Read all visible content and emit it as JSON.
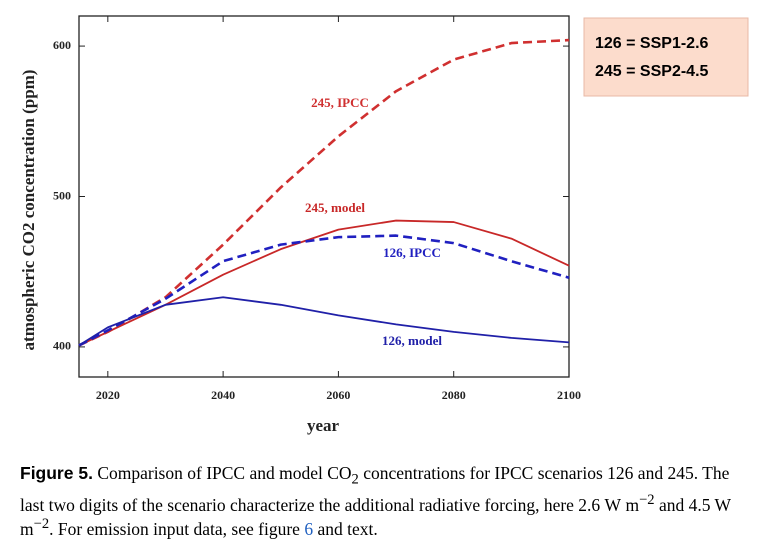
{
  "chart_data": {
    "type": "line",
    "x_label": "year",
    "y_label": "atmospheric CO2 concentration (ppm)",
    "x": [
      2015,
      2020,
      2030,
      2040,
      2050,
      2060,
      2070,
      2080,
      2090,
      2100
    ],
    "series": [
      {
        "name": "245, IPCC",
        "color": "#d03030",
        "dashed": true,
        "values": [
          401,
          410,
          433,
          468,
          506,
          540,
          570,
          591,
          602,
          604
        ]
      },
      {
        "name": "245, model",
        "color": "#c82828",
        "dashed": false,
        "values": [
          401,
          410,
          428,
          448,
          465,
          478,
          484,
          483,
          472,
          454
        ]
      },
      {
        "name": "126, IPCC",
        "color": "#2020c0",
        "dashed": true,
        "values": [
          401,
          411,
          432,
          457,
          468,
          473,
          474,
          469,
          457,
          446
        ]
      },
      {
        "name": "126, model",
        "color": "#2020a8",
        "dashed": false,
        "values": [
          401,
          413,
          428,
          433,
          428,
          421,
          415,
          410,
          406,
          403
        ]
      }
    ],
    "xlim": [
      2015,
      2100
    ],
    "xticks": [
      2020,
      2040,
      2060,
      2080,
      2100
    ],
    "ylim": [
      380,
      620
    ],
    "yticks": [
      400,
      500,
      600
    ],
    "grid": false
  },
  "legend_box": {
    "lines": [
      "126 = SSP1-2.6",
      "245 = SSP2-4.5"
    ]
  },
  "caption": {
    "label": "Figure 5.",
    "parts": [
      " Comparison of IPCC and model CO",
      "2",
      " concentrations for IPCC scenarios 126 and 245. The last two digits of the scenario characterize the additional radiative forcing, here 2.6 W m",
      "−2",
      " and 4.5 W m",
      "−2",
      ". For emission input data, see figure ",
      "6",
      " and text."
    ]
  }
}
